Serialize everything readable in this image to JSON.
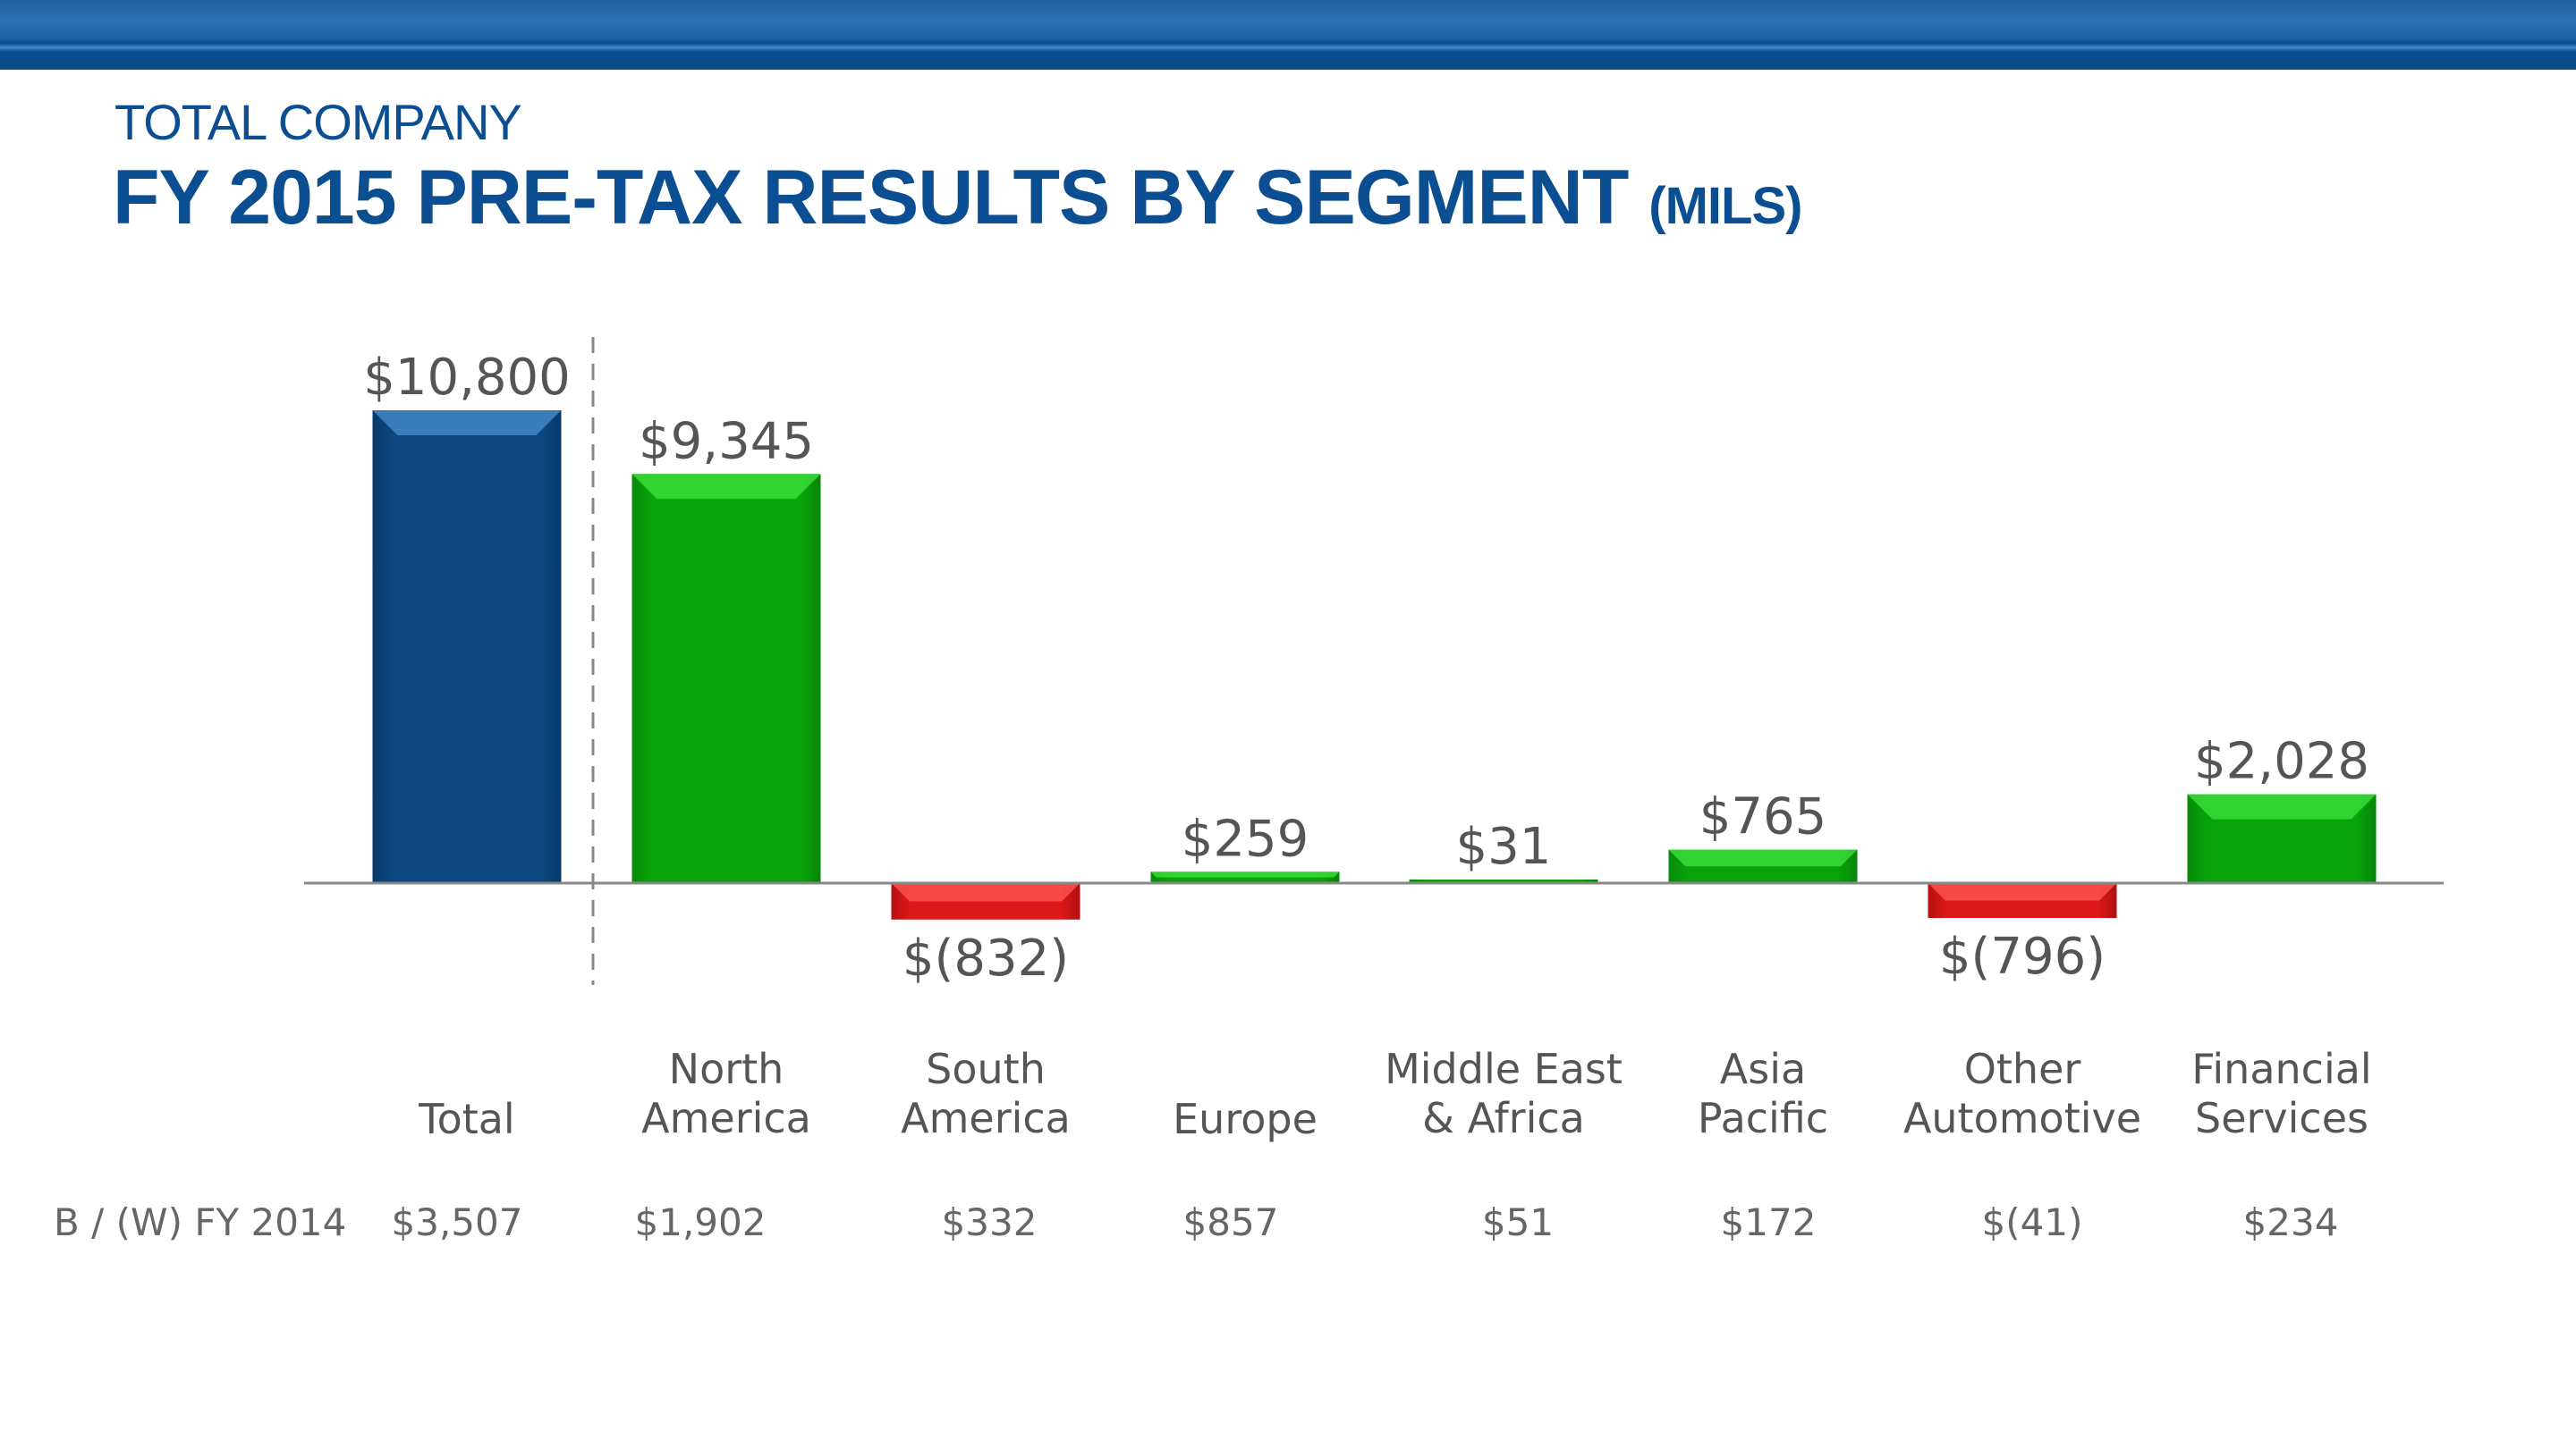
{
  "header": {
    "kicker": "TOTAL COMPANY",
    "title": "FY 2015 PRE-TAX RESULTS BY SEGMENT",
    "unit": "(MILS)"
  },
  "colors": {
    "banner": "#0b4f92",
    "total": "#0c467f",
    "positive": "#08a20a",
    "negative": "#d91616",
    "text": "#555555"
  },
  "chart_data": {
    "type": "bar",
    "title": "FY 2015 PRE-TAX RESULTS BY SEGMENT (MILS)",
    "categories": [
      [
        "Total"
      ],
      [
        "North",
        "America"
      ],
      [
        "South",
        "America"
      ],
      [
        "Europe"
      ],
      [
        "Middle East",
        "& Africa"
      ],
      [
        "Asia",
        "Pacific"
      ],
      [
        "Other",
        "Automotive"
      ],
      [
        "Financial",
        "Services"
      ]
    ],
    "values": [
      10800,
      9345,
      -832,
      259,
      31,
      765,
      -796,
      2028
    ],
    "value_labels": [
      "$10,800",
      "$9,345",
      "$(832)",
      "$259",
      "$31",
      "$765",
      "$(796)",
      "$2,028"
    ],
    "grid": false,
    "separator_after_first": true,
    "comparison_row": {
      "label": "B / (W) FY 2014",
      "values": [
        3507,
        1902,
        332,
        857,
        51,
        172,
        -41,
        234
      ],
      "value_labels": [
        "$3,507",
        "$1,902",
        "$332",
        "$857",
        "$51",
        "$172",
        "$(41)",
        "$234"
      ]
    }
  }
}
